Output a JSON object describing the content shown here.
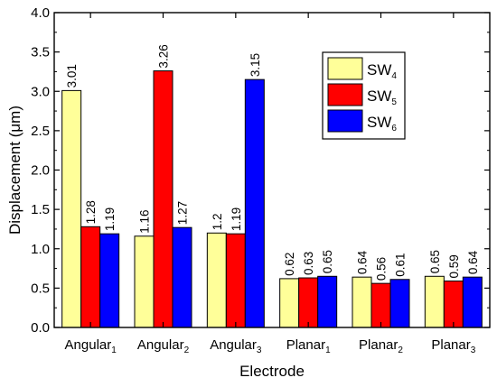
{
  "chart_data": {
    "type": "bar",
    "xlabel": "Electrode",
    "ylabel": "Displacement (μm)",
    "ylim": [
      0,
      4.0
    ],
    "yticks": [
      "0.0",
      "0.5",
      "1.0",
      "1.5",
      "2.0",
      "2.5",
      "3.0",
      "3.5",
      "4.0"
    ],
    "categories": [
      {
        "base": "Angular",
        "sub": "1"
      },
      {
        "base": "Angular",
        "sub": "2"
      },
      {
        "base": "Angular",
        "sub": "3"
      },
      {
        "base": "Planar",
        "sub": "1"
      },
      {
        "base": "Planar",
        "sub": "2"
      },
      {
        "base": "Planar",
        "sub": "3"
      }
    ],
    "series": [
      {
        "name": "SW",
        "sub": "4",
        "color": "#ffff99",
        "values": [
          3.01,
          1.16,
          1.2,
          0.62,
          0.64,
          0.65
        ],
        "labels": [
          "3.01",
          "1.16",
          "1.2",
          "0.62",
          "0.64",
          "0.65"
        ]
      },
      {
        "name": "SW",
        "sub": "5",
        "color": "#ff0000",
        "values": [
          1.28,
          3.26,
          1.19,
          0.63,
          0.56,
          0.59
        ],
        "labels": [
          "1.28",
          "3.26",
          "1.19",
          "0.63",
          "0.56",
          "0.59"
        ]
      },
      {
        "name": "SW",
        "sub": "6",
        "color": "#0000ff",
        "values": [
          1.19,
          1.27,
          3.15,
          0.65,
          0.61,
          0.64
        ],
        "labels": [
          "1.19",
          "1.27",
          "3.15",
          "0.65",
          "0.61",
          "0.64"
        ]
      }
    ],
    "legend_position": "top-right",
    "grid": false
  }
}
